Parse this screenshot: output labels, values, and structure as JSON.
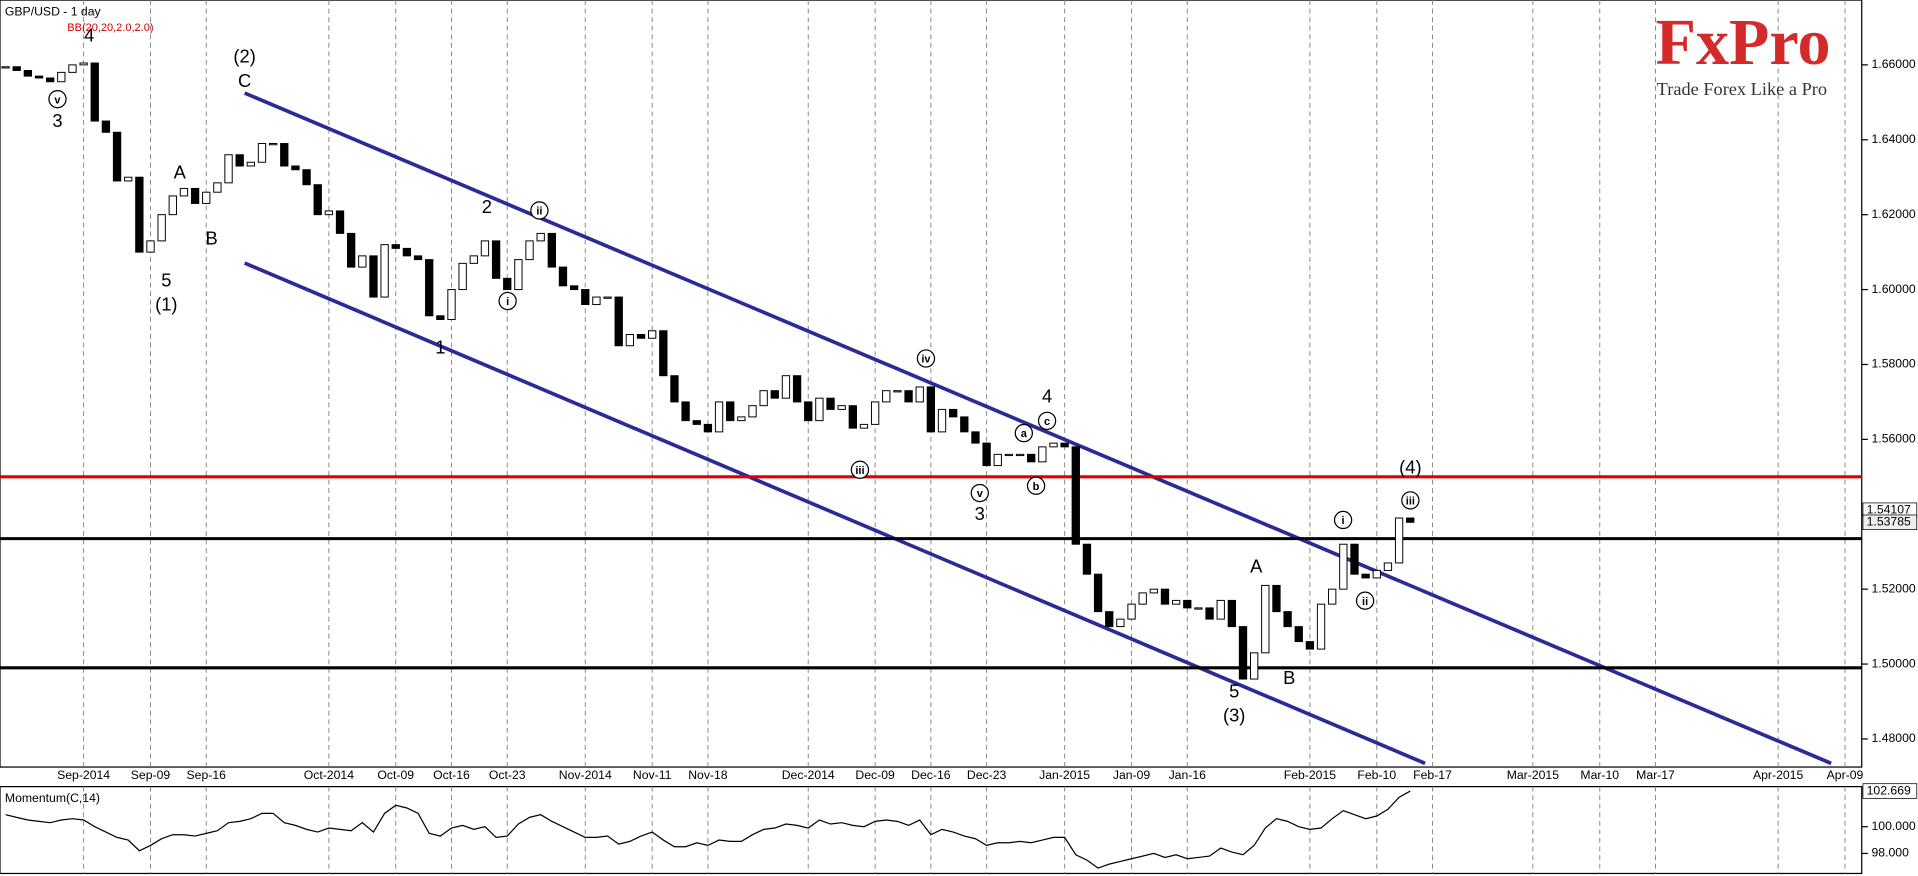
{
  "logo": {
    "brand": "FxPro",
    "slogan": "Trade Forex Like a Pro"
  },
  "chart_data": {
    "type": "candlestick",
    "title": "GBP/USD - 1 day",
    "indicator_label": "BB(20,20,2.0,2.0)",
    "categories": [
      null,
      null,
      null,
      null,
      null,
      null,
      null,
      "Sep-2014",
      null,
      null,
      null,
      null,
      null,
      "Sep-09",
      null,
      null,
      null,
      null,
      "Sep-16",
      null,
      null,
      null,
      null,
      null,
      null,
      null,
      null,
      null,
      null,
      "Oct-2014",
      null,
      null,
      null,
      null,
      null,
      "Oct-09",
      null,
      null,
      null,
      null,
      "Oct-16",
      null,
      null,
      null,
      null,
      "Oct-23",
      null,
      null,
      null,
      null,
      null,
      null,
      "Nov-2014",
      null,
      null,
      null,
      null,
      null,
      "Nov-11",
      null,
      null,
      null,
      null,
      "Nov-18",
      null,
      null,
      null,
      null,
      null,
      null,
      null,
      null,
      "Dec-2014",
      null,
      null,
      null,
      null,
      null,
      "Dec-09",
      null,
      null,
      null,
      null,
      "Dec-16",
      null,
      null,
      null,
      null,
      "Dec-23",
      null,
      null,
      null,
      null,
      null,
      null,
      "Jan-2015",
      null,
      null,
      null,
      null,
      null,
      "Jan-09",
      null,
      null,
      null,
      null,
      "Jan-16",
      null,
      null,
      null,
      null,
      null,
      null,
      null,
      null,
      null,
      null,
      "Feb-2015",
      null,
      null,
      null,
      null,
      null,
      "Feb-10",
      null,
      null,
      null,
      null,
      "Feb-17",
      null,
      null,
      null,
      null,
      null,
      null,
      null,
      null,
      "Mar-2015",
      null,
      null,
      null,
      null,
      null,
      "Mar-10",
      null,
      null,
      null,
      null,
      "Mar-17",
      null,
      null,
      null,
      null,
      null,
      null,
      null,
      null,
      null,
      null,
      "Apr-2015",
      null,
      null,
      null,
      null,
      null,
      "Apr-09",
      null
    ],
    "values": [
      1.6595,
      1.6585,
      1.657,
      1.6565,
      1.6555,
      1.658,
      1.66,
      1.6605,
      1.645,
      1.642,
      1.629,
      1.63,
      1.61,
      1.613,
      1.62,
      1.625,
      1.627,
      1.623,
      1.626,
      1.6285,
      1.636,
      1.633,
      1.634,
      1.639,
      1.639,
      1.633,
      1.632,
      1.628,
      1.62,
      1.621,
      1.615,
      1.606,
      1.609,
      1.598,
      1.612,
      1.611,
      1.609,
      1.608,
      1.593,
      1.592,
      1.6,
      1.607,
      1.609,
      1.613,
      1.603,
      1.6,
      1.608,
      1.613,
      1.615,
      1.606,
      1.601,
      1.6,
      1.596,
      1.598,
      1.598,
      1.585,
      1.588,
      1.587,
      1.589,
      1.577,
      1.57,
      1.565,
      1.564,
      1.562,
      1.57,
      1.565,
      1.566,
      1.569,
      1.573,
      1.571,
      1.577,
      1.57,
      1.565,
      1.571,
      1.568,
      1.569,
      1.563,
      1.564,
      1.57,
      1.573,
      1.573,
      1.57,
      1.574,
      1.562,
      1.568,
      1.566,
      1.562,
      1.559,
      1.553,
      1.556,
      1.556,
      1.556,
      1.554,
      1.558,
      1.559,
      1.558,
      1.532,
      1.524,
      1.514,
      1.51,
      1.512,
      1.516,
      1.519,
      1.52,
      1.516,
      1.517,
      1.515,
      1.515,
      1.512,
      1.517,
      1.51,
      1.496,
      1.503,
      1.521,
      1.514,
      1.51,
      1.506,
      1.504,
      1.516,
      1.52,
      1.532,
      1.524,
      1.523,
      1.525,
      1.527,
      1.539,
      1.53785,
      null,
      null,
      null,
      null,
      null,
      null,
      null,
      null,
      null,
      null,
      null,
      null,
      null,
      null,
      null,
      null,
      null,
      null,
      null,
      null,
      null,
      null,
      null,
      null,
      null,
      null,
      null,
      null,
      null,
      null,
      null,
      null,
      null,
      null,
      null,
      null,
      null,
      null,
      null,
      null
    ],
    "up_color": "#ffffff",
    "down_color": "#000000",
    "ylim": [
      1.4725,
      1.6773
    ],
    "yticks": [
      {
        "value": 1.48,
        "label": "1.48000"
      },
      {
        "value": 1.5,
        "label": "1.50000"
      },
      {
        "value": 1.52,
        "label": "1.52000"
      },
      {
        "value": 1.54,
        "label": "1.54000"
      },
      {
        "value": 1.56,
        "label": "1.56000"
      },
      {
        "value": 1.58,
        "label": "1.58000"
      },
      {
        "value": 1.6,
        "label": "1.60000"
      },
      {
        "value": 1.62,
        "label": "1.62000"
      },
      {
        "value": 1.64,
        "label": "1.64000"
      },
      {
        "value": 1.66,
        "label": "1.66000"
      }
    ],
    "price_marker": 1.54107,
    "levels": [
      {
        "value": 1.55,
        "color": "#e00000"
      },
      {
        "value": 1.5335,
        "color": "#000000"
      },
      {
        "value": 1.499,
        "color": "#000000"
      }
    ],
    "annotations": [
      {
        "text": "4"
      },
      {
        "text": "v",
        "circled": true
      },
      {
        "text": "3"
      },
      {
        "text": "(2)"
      },
      {
        "text": "C"
      },
      {
        "text": "A"
      },
      {
        "text": "B"
      },
      {
        "text": "5"
      },
      {
        "text": "(1)"
      },
      {
        "text": "2"
      },
      {
        "text": "ii",
        "circled": true
      },
      {
        "text": "i",
        "circled": true
      },
      {
        "text": "1"
      },
      {
        "text": "iv",
        "circled": true
      },
      {
        "text": "4"
      },
      {
        "text": "c",
        "circled": true
      },
      {
        "text": "a",
        "circled": true
      },
      {
        "text": "iii",
        "circled": true
      },
      {
        "text": "b",
        "circled": true
      },
      {
        "text": "v",
        "circled": true
      },
      {
        "text": "3"
      },
      {
        "text": "i",
        "circled": true
      },
      {
        "text": "(4)"
      },
      {
        "text": "iii",
        "circled": true
      },
      {
        "text": "A"
      },
      {
        "text": "ii",
        "circled": true
      },
      {
        "text": "5"
      },
      {
        "text": "(3)"
      },
      {
        "text": "B"
      }
    ],
    "momentum": {
      "title": "Momentum(C,14)",
      "color": "#000000",
      "ylim": [
        96.5,
        103
      ],
      "yticks": [
        {
          "value": 98,
          "label": "98.000"
        },
        {
          "value": 100,
          "label": "100.000"
        }
      ],
      "values": [
        100.9,
        100.7,
        100.5,
        100.4,
        100.3,
        100.5,
        100.6,
        100.5,
        100.0,
        99.6,
        99.2,
        99.0,
        98.2,
        98.6,
        99.1,
        99.4,
        99.4,
        99.3,
        99.5,
        99.7,
        100.3,
        100.4,
        100.6,
        101.0,
        101.0,
        100.3,
        100.1,
        99.8,
        99.6,
        99.9,
        99.8,
        99.7,
        100.3,
        99.6,
        101.0,
        101.6,
        101.4,
        101.0,
        99.5,
        99.3,
        99.9,
        100.1,
        99.8,
        100.0,
        99.2,
        99.3,
        100.2,
        100.7,
        100.9,
        100.4,
        100.0,
        99.6,
        99.2,
        99.2,
        99.3,
        98.7,
        98.9,
        99.3,
        99.6,
        99.0,
        98.5,
        98.5,
        98.8,
        98.6,
        99.0,
        98.9,
        98.9,
        99.4,
        99.8,
        99.9,
        100.2,
        100.1,
        99.9,
        100.5,
        100.2,
        100.3,
        100.1,
        100.0,
        100.4,
        100.5,
        100.4,
        100.1,
        100.5,
        99.4,
        99.8,
        99.6,
        99.3,
        99.1,
        98.6,
        98.8,
        98.8,
        98.9,
        98.8,
        99.0,
        99.2,
        99.2,
        97.9,
        97.5,
        96.9,
        97.2,
        97.4,
        97.6,
        97.8,
        98.0,
        97.7,
        97.9,
        97.6,
        97.7,
        97.8,
        98.4,
        98.1,
        97.9,
        98.6,
        99.9,
        100.6,
        100.4,
        100.0,
        99.8,
        99.9,
        100.6,
        101.2,
        100.9,
        100.6,
        100.8,
        101.3,
        102.2,
        102.669,
        null,
        null,
        null,
        null,
        null,
        null,
        null,
        null,
        null,
        null,
        null,
        null,
        null,
        null,
        null,
        null,
        null,
        null,
        null,
        null,
        null,
        null,
        null,
        null,
        null,
        null,
        null,
        null,
        null,
        null,
        null,
        null,
        null,
        null,
        null,
        null,
        null,
        null,
        null,
        null
      ]
    }
  }
}
